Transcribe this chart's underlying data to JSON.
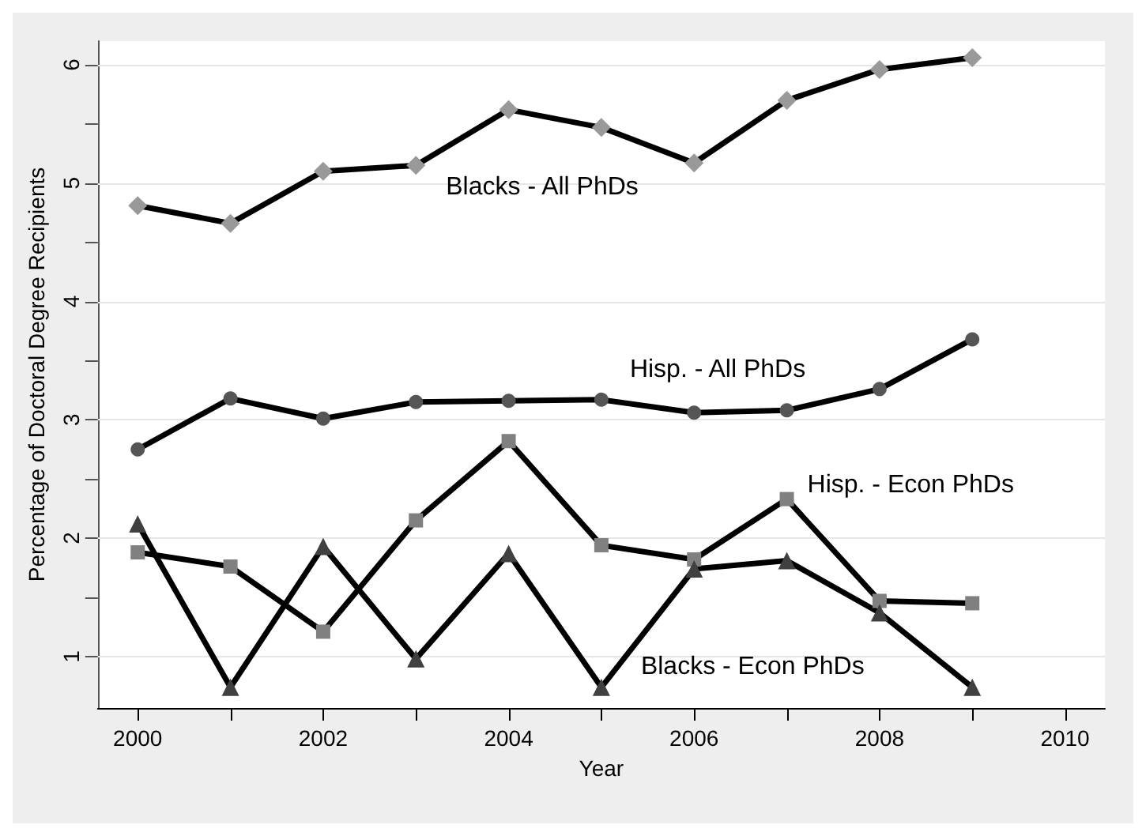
{
  "chart_data": {
    "type": "line",
    "xlabel": "Year",
    "ylabel": "Percentage of Doctoral Degree Recipients",
    "x": [
      2000,
      2001,
      2002,
      2003,
      2004,
      2005,
      2006,
      2007,
      2008,
      2009
    ],
    "series": [
      {
        "name": "Blacks - All PhDs",
        "color": "#999999",
        "marker": "diamond",
        "values": [
          4.81,
          4.66,
          5.1,
          5.15,
          5.62,
          5.47,
          5.17,
          5.7,
          5.96,
          6.06
        ]
      },
      {
        "name": "Hisp. - All PhDs",
        "color": "#555555",
        "marker": "circle",
        "values": [
          2.75,
          3.18,
          3.01,
          3.15,
          3.16,
          3.17,
          3.06,
          3.08,
          3.26,
          3.68
        ]
      },
      {
        "name": "Hisp. - Econ PhDs",
        "color": "#808080",
        "marker": "square",
        "values": [
          1.88,
          1.76,
          1.21,
          2.15,
          2.82,
          1.94,
          1.82,
          2.33,
          1.47,
          1.45
        ]
      },
      {
        "name": "Blacks - Econ PhDs",
        "color": "#404040",
        "marker": "triangle",
        "values": [
          2.12,
          0.74,
          1.93,
          0.98,
          1.87,
          0.74,
          1.74,
          1.81,
          1.37,
          0.74
        ]
      }
    ],
    "xlim": [
      1999.57,
      2010.43
    ],
    "xticks": [
      2000,
      {
        "value": 2001,
        "label": null
      },
      2002,
      {
        "value": 2003,
        "label": null
      },
      2004,
      {
        "value": 2005,
        "label": null
      },
      2006,
      {
        "value": 2007,
        "label": null
      },
      2008,
      {
        "value": 2009,
        "label": null
      },
      2010
    ],
    "ylim": [
      0.565,
      6.2
    ],
    "yticks": [
      1,
      {
        "value": 1.5,
        "label": null
      },
      2,
      {
        "value": 2.5,
        "label": null
      },
      3,
      {
        "value": 3.5,
        "label": null
      },
      4,
      {
        "value": 4.5,
        "label": null
      },
      5,
      {
        "value": 5.5,
        "label": null
      },
      6
    ],
    "grid": "y",
    "legend": false,
    "line_style": "solid"
  }
}
